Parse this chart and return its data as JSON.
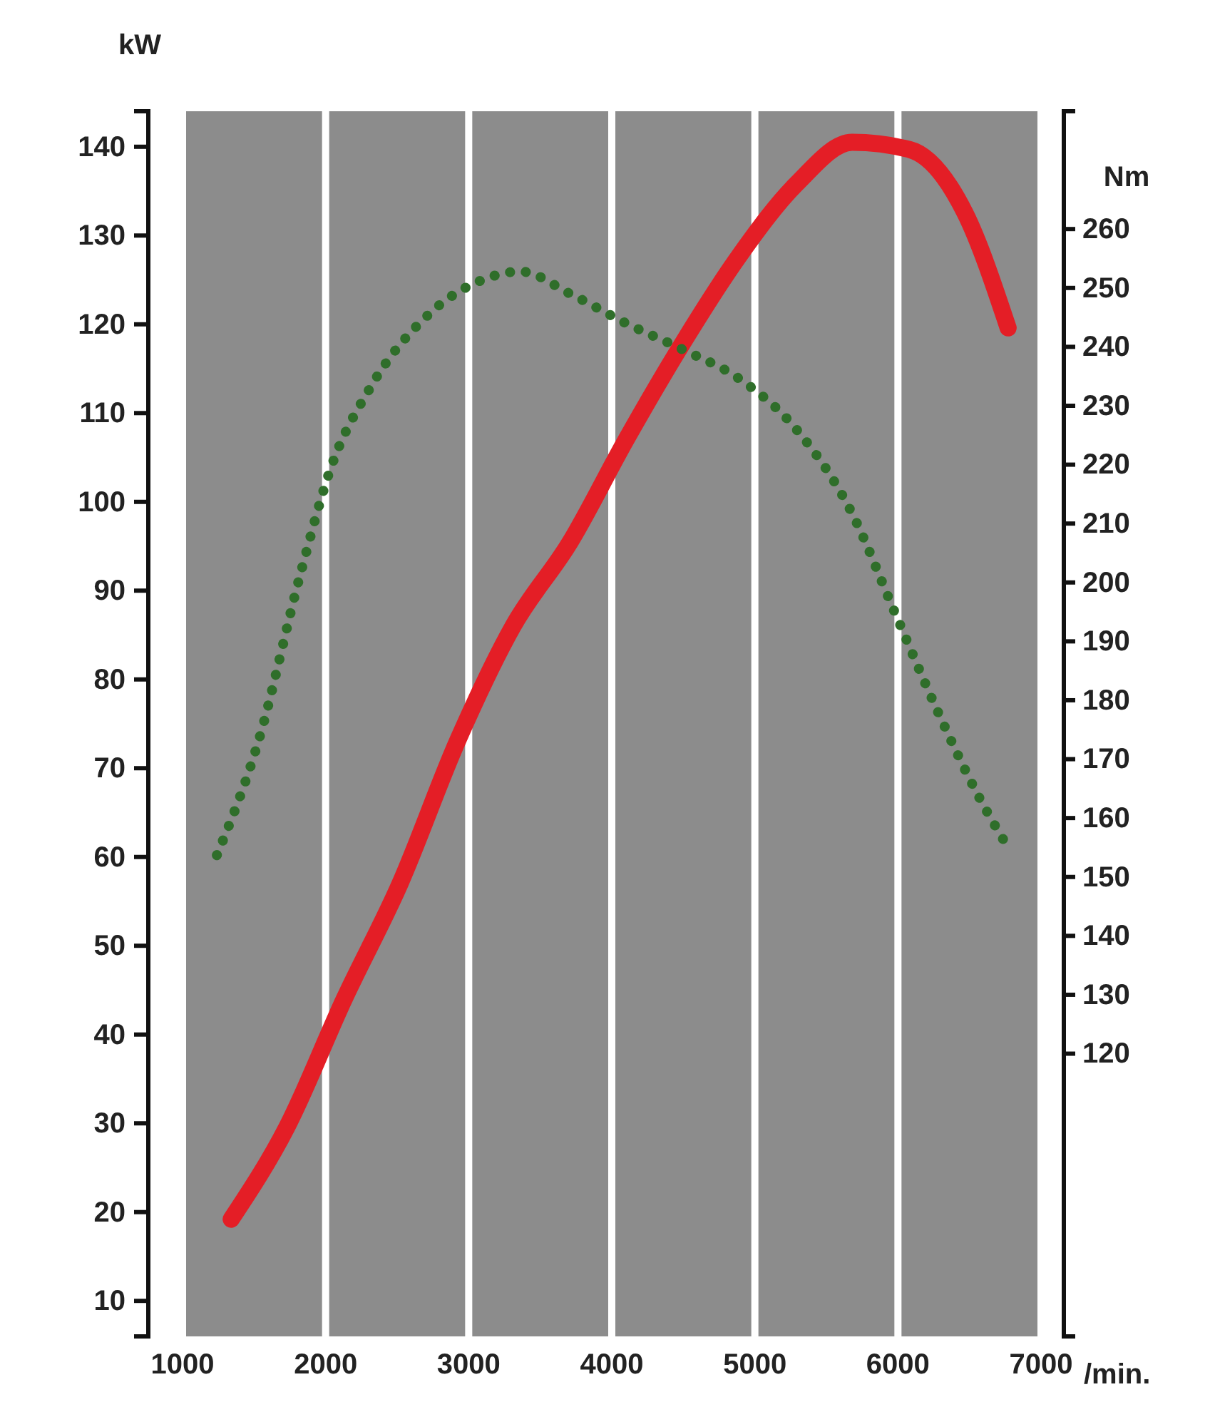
{
  "chart_data": {
    "type": "line",
    "ylabel": "kW",
    "y2label": "Nm",
    "xlabel": "/min.",
    "xlim": [
      1000,
      7000
    ],
    "xticks": [
      1000,
      2000,
      3000,
      4000,
      5000,
      6000,
      7000
    ],
    "ylim": [
      6,
      144
    ],
    "yticks": [
      10,
      20,
      30,
      40,
      50,
      60,
      70,
      80,
      90,
      100,
      110,
      120,
      130,
      140
    ],
    "y2lim": [
      72,
      280
    ],
    "y2ticks": [
      120,
      130,
      140,
      150,
      160,
      170,
      180,
      190,
      200,
      210,
      220,
      230,
      240,
      250,
      260
    ],
    "grid": "x",
    "series": [
      {
        "color": "#e41e26",
        "line_style": "solid",
        "x": [
          1340,
          1730,
          2130,
          2520,
          2920,
          3310,
          3710,
          4100,
          4500,
          4890,
          5290,
          5680,
          6080,
          6470,
          6770
        ],
        "values": [
          19.2,
          29.6,
          44,
          57,
          73,
          86,
          95.5,
          107,
          118,
          127.7,
          135.8,
          140.5,
          139.7,
          132.5,
          119.6
        ]
      },
      {
        "color": "#2f6e2a",
        "line_style": "dotted",
        "axis": "y2",
        "x": [
          1240,
          1530,
          1830,
          2030,
          2320,
          2720,
          3110,
          3360,
          3710,
          4100,
          4500,
          4890,
          5290,
          5680,
          5980,
          6280,
          6570,
          6770
        ],
        "values": [
          153.7,
          173,
          202,
          219,
          233.4,
          245.5,
          251.5,
          252.8,
          249,
          244,
          239.5,
          234.6,
          226,
          211.7,
          194.8,
          178,
          163.4,
          155
        ]
      }
    ]
  }
}
